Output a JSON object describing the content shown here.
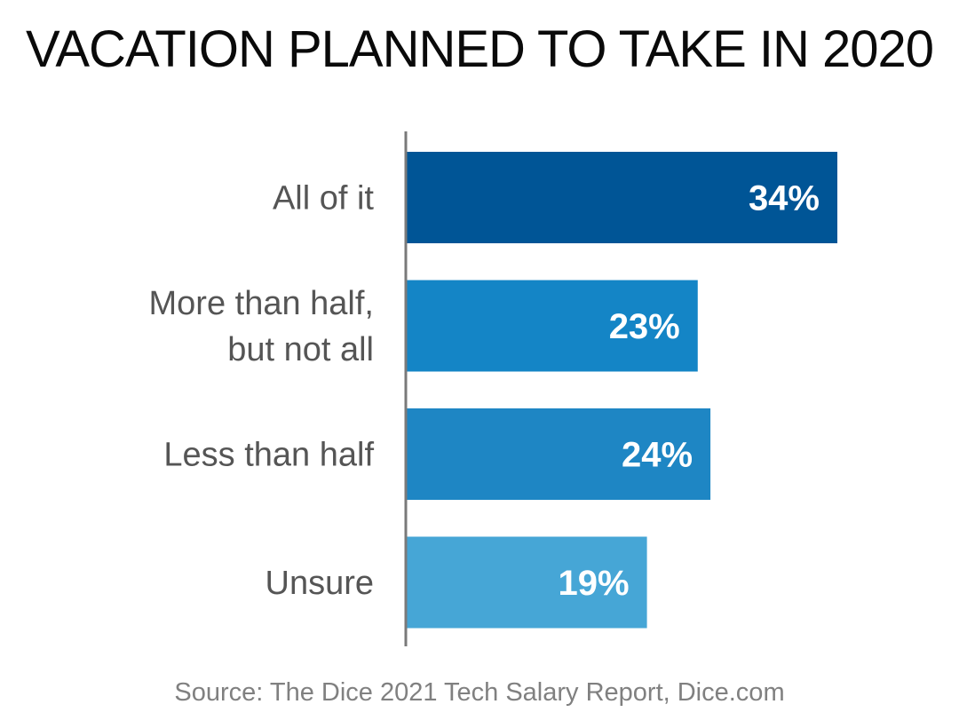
{
  "title": "VACATION PLANNED TO TAKE IN 2020",
  "source": "Source: The Dice 2021 Tech Salary Report, Dice.com",
  "chart_data": {
    "type": "bar",
    "orientation": "horizontal",
    "title": "VACATION PLANNED TO TAKE IN 2020",
    "categories": [
      [
        "All of it"
      ],
      [
        "More than half,",
        "but not all"
      ],
      [
        "Less than half"
      ],
      [
        "Unsure"
      ]
    ],
    "values": [
      34,
      23,
      24,
      19
    ],
    "value_labels": [
      "34%",
      "23%",
      "24%",
      "19%"
    ],
    "colors": [
      "#005596",
      "#1485c6",
      "#1e86c4",
      "#46a6d6"
    ],
    "axis_color": "#7a7a7a",
    "xlim": [
      0,
      34
    ],
    "grid": false,
    "legend": "none"
  }
}
